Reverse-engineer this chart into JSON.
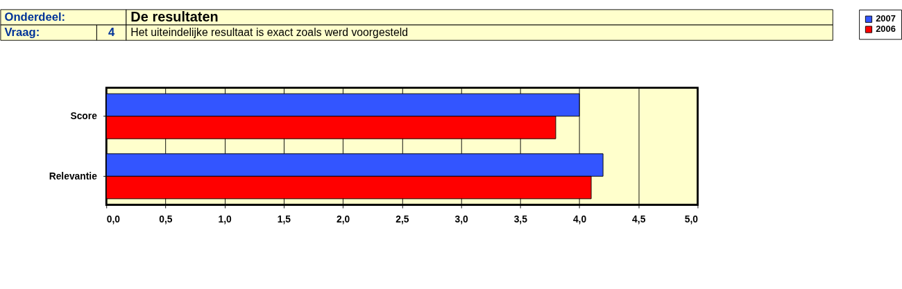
{
  "chart_data": {
    "type": "bar",
    "orientation": "horizontal",
    "title": "De resultaten",
    "subtitle": "Het uiteindelijke resultaat is exact zoals werd voorgesteld",
    "annotations": [
      "Onderdeel:",
      "Vraag:",
      "4"
    ],
    "categories": [
      "Score",
      "Relevantie"
    ],
    "series": [
      {
        "name": "2007",
        "color": "#3355ff",
        "values": [
          4.0,
          4.2
        ]
      },
      {
        "name": "2006",
        "color": "#ff0000",
        "values": [
          3.8,
          4.1
        ]
      }
    ],
    "xlim": [
      0,
      5
    ],
    "xticks": [
      {
        "value": 0,
        "label": "0,0"
      },
      {
        "value": 0.5,
        "label": "0,5"
      },
      {
        "value": 1,
        "label": "1,0"
      },
      {
        "value": 1.5,
        "label": "1,5"
      },
      {
        "value": 2,
        "label": "2,0"
      },
      {
        "value": 2.5,
        "label": "2,5"
      },
      {
        "value": 3,
        "label": "3,0"
      },
      {
        "value": 3.5,
        "label": "3,5"
      },
      {
        "value": 4,
        "label": "4,0"
      },
      {
        "value": 4.5,
        "label": "4,5"
      },
      {
        "value": 5,
        "label": "5,0"
      }
    ],
    "grid": "x",
    "legend": "right"
  }
}
